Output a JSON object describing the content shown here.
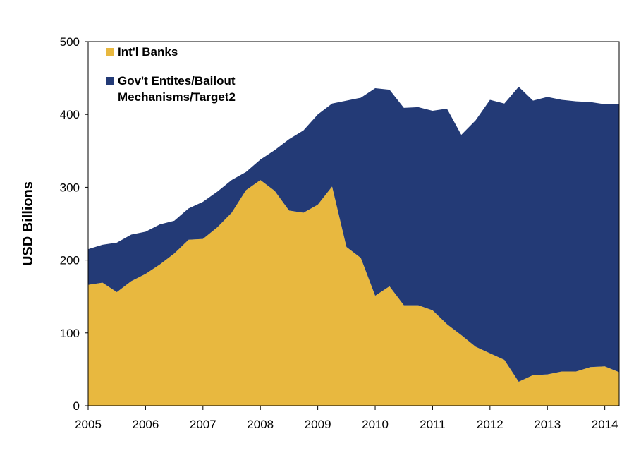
{
  "chart_data": {
    "type": "area",
    "stacked": true,
    "xlabel": "",
    "ylabel": "USD Billions",
    "ylim": [
      0,
      500
    ],
    "xlim": [
      2005,
      2014.25
    ],
    "yticks": [
      0,
      100,
      200,
      300,
      400,
      500
    ],
    "xticks": [
      2005,
      2006,
      2007,
      2008,
      2009,
      2010,
      2011,
      2012,
      2013,
      2014
    ],
    "grid": false,
    "legend_position": "top-left",
    "x": [
      2005,
      2005.25,
      2005.5,
      2005.75,
      2006,
      2006.25,
      2006.5,
      2006.75,
      2007,
      2007.25,
      2007.5,
      2007.75,
      2008,
      2008.25,
      2008.5,
      2008.75,
      2009,
      2009.25,
      2009.5,
      2009.75,
      2010,
      2010.25,
      2010.5,
      2010.75,
      2011,
      2011.25,
      2011.5,
      2011.75,
      2012,
      2012.25,
      2012.5,
      2012.75,
      2013,
      2013.25,
      2013.5,
      2013.75,
      2014,
      2014.25
    ],
    "series": [
      {
        "name": "Int'l Banks",
        "color": "#E8B83F",
        "values": [
          166,
          169,
          156,
          171,
          181,
          194,
          209,
          228,
          229,
          245,
          265,
          296,
          310,
          295,
          268,
          265,
          276,
          301,
          218,
          203,
          151,
          164,
          138,
          138,
          131,
          112,
          97,
          81,
          72,
          63,
          33,
          42,
          43,
          47,
          47,
          53,
          54,
          46
        ]
      },
      {
        "name": "Gov't Entites/Bailout Mechanisms/Target2",
        "color": "#233A76",
        "values": [
          49,
          52,
          68,
          64,
          58,
          55,
          45,
          43,
          51,
          49,
          45,
          25,
          28,
          56,
          98,
          113,
          124,
          114,
          201,
          220,
          285,
          270,
          271,
          272,
          274,
          296,
          275,
          311,
          348,
          352,
          405,
          377,
          381,
          373,
          371,
          364,
          360,
          368
        ]
      }
    ]
  },
  "legend": {
    "items": [
      {
        "label_line1": "Int'l Banks",
        "label_line2": "",
        "color": "#E8B83F"
      },
      {
        "label_line1": "Gov't Entites/Bailout",
        "label_line2": "Mechanisms/Target2",
        "color": "#233A76"
      }
    ]
  }
}
